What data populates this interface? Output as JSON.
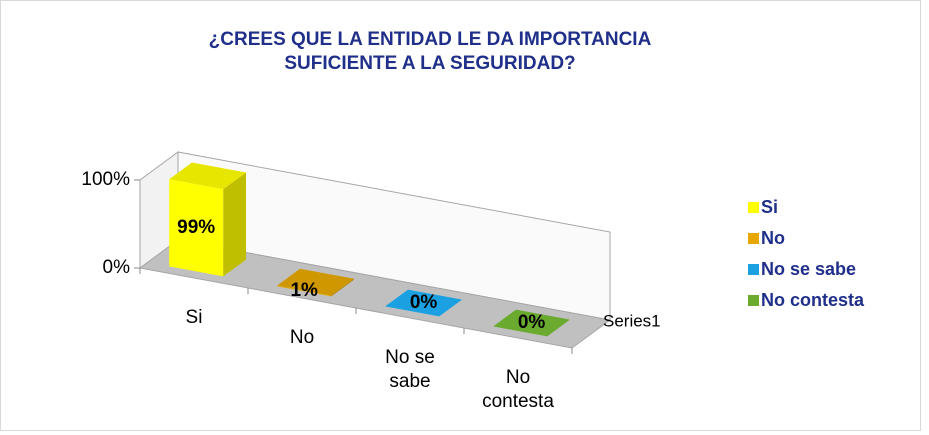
{
  "chart_data": {
    "type": "bar3d",
    "title": "¿CREES QUE LA ENTIDAD LE DA IMPORTANCIA SUFICIENTE A LA SEGURIDAD?",
    "categories": [
      "Si",
      "No",
      "No se sabe",
      "No contesta"
    ],
    "values": [
      99,
      1,
      0,
      0
    ],
    "value_labels": [
      "99%",
      "1%",
      "0%",
      "0%"
    ],
    "colors": [
      "#ffff00",
      "#e6a800",
      "#1ba1e2",
      "#6aaa2f"
    ],
    "series_name": "Series1",
    "ylim": [
      0,
      100
    ],
    "yticks": [
      {
        "value": 0,
        "label": "0%"
      },
      {
        "value": 100,
        "label": "100%"
      }
    ],
    "legend": "right"
  }
}
